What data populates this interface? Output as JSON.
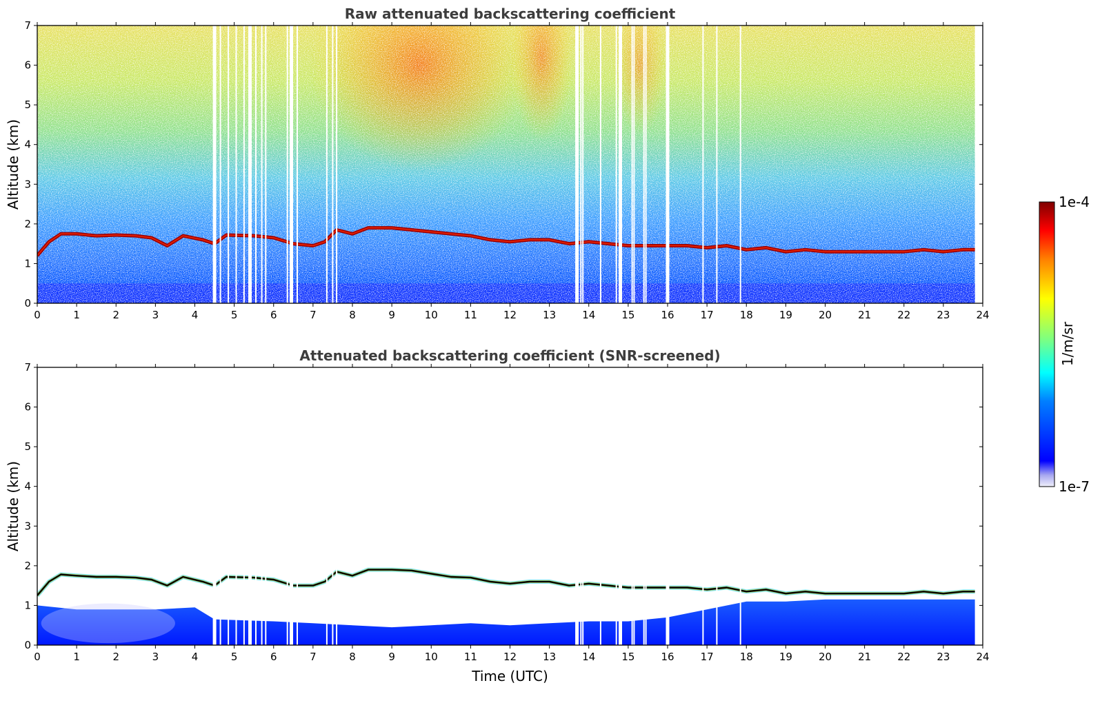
{
  "colors": {
    "jet": [
      "#00007f",
      "#0000ff",
      "#007fff",
      "#00ffff",
      "#7fff7f",
      "#ffff00",
      "#ff7f00",
      "#ff0000",
      "#7f0000"
    ],
    "axis": "#000000",
    "title_text": "#3d3d3d"
  },
  "colorbar": {
    "max_label": "1e-4",
    "min_label": "1e-7",
    "unit_label": "1/m/sr",
    "scale": "log"
  },
  "chart_data": [
    {
      "type": "heatmap",
      "title": "Raw attenuated backscattering coefficient",
      "xlabel": "",
      "ylabel": "Altitude (km)",
      "xlim": [
        0,
        24
      ],
      "ylim": [
        0,
        7
      ],
      "xticks": [
        "0",
        "1",
        "2",
        "3",
        "4",
        "5",
        "6",
        "7",
        "8",
        "9",
        "10",
        "11",
        "12",
        "13",
        "14",
        "15",
        "16",
        "17",
        "18",
        "19",
        "20",
        "21",
        "22",
        "23",
        "24"
      ],
      "yticks": [
        "0",
        "1",
        "2",
        "3",
        "4",
        "5",
        "6",
        "7"
      ],
      "data_end_time": 23.8,
      "cloud_layer_altitude_km": [
        [
          0.0,
          1.2
        ],
        [
          0.3,
          1.55
        ],
        [
          0.6,
          1.75
        ],
        [
          1.0,
          1.75
        ],
        [
          1.5,
          1.7
        ],
        [
          2.0,
          1.72
        ],
        [
          2.5,
          1.7
        ],
        [
          2.9,
          1.65
        ],
        [
          3.3,
          1.45
        ],
        [
          3.7,
          1.7
        ],
        [
          4.2,
          1.6
        ],
        [
          4.5,
          1.5
        ],
        [
          4.8,
          1.72
        ],
        [
          5.5,
          1.7
        ],
        [
          6.0,
          1.65
        ],
        [
          6.5,
          1.5
        ],
        [
          7.0,
          1.45
        ],
        [
          7.3,
          1.55
        ],
        [
          7.6,
          1.85
        ],
        [
          8.0,
          1.75
        ],
        [
          8.4,
          1.9
        ],
        [
          9.0,
          1.9
        ],
        [
          9.5,
          1.85
        ],
        [
          10.0,
          1.8
        ],
        [
          10.5,
          1.75
        ],
        [
          11.0,
          1.7
        ],
        [
          11.5,
          1.6
        ],
        [
          12.0,
          1.55
        ],
        [
          12.5,
          1.6
        ],
        [
          13.0,
          1.6
        ],
        [
          13.5,
          1.5
        ],
        [
          14.0,
          1.55
        ],
        [
          14.5,
          1.5
        ],
        [
          15.0,
          1.45
        ],
        [
          15.5,
          1.45
        ],
        [
          16.0,
          1.45
        ],
        [
          16.5,
          1.45
        ],
        [
          17.0,
          1.4
        ],
        [
          17.5,
          1.45
        ],
        [
          18.0,
          1.35
        ],
        [
          18.5,
          1.4
        ],
        [
          19.0,
          1.3
        ],
        [
          19.5,
          1.35
        ],
        [
          20.0,
          1.3
        ],
        [
          20.5,
          1.3
        ],
        [
          21.0,
          1.3
        ],
        [
          21.5,
          1.3
        ],
        [
          22.0,
          1.3
        ],
        [
          22.5,
          1.35
        ],
        [
          23.0,
          1.3
        ],
        [
          23.5,
          1.35
        ],
        [
          23.8,
          1.35
        ]
      ],
      "missing_data_times": [
        4.5,
        4.65,
        4.85,
        5.05,
        5.25,
        5.4,
        5.55,
        5.7,
        5.8,
        6.35,
        6.45,
        6.6,
        7.35,
        7.5,
        7.6,
        13.7,
        13.8,
        13.85,
        14.3,
        14.7,
        14.8,
        15.1,
        15.15,
        15.4,
        15.45,
        16.0,
        16.9,
        17.25,
        17.85
      ]
    },
    {
      "type": "heatmap",
      "title": "Attenuated backscattering coefficient (SNR-screened)",
      "xlabel": "Time (UTC)",
      "ylabel": "Altitude (km)",
      "xlim": [
        0,
        24
      ],
      "ylim": [
        0,
        7
      ],
      "xticks": [
        "0",
        "1",
        "2",
        "3",
        "4",
        "5",
        "6",
        "7",
        "8",
        "9",
        "10",
        "11",
        "12",
        "13",
        "14",
        "15",
        "16",
        "17",
        "18",
        "19",
        "20",
        "21",
        "22",
        "23",
        "24"
      ],
      "yticks": [
        "0",
        "1",
        "2",
        "3",
        "4",
        "5",
        "6",
        "7"
      ],
      "data_end_time": 23.8,
      "cloud_layer_altitude_km": [
        [
          0.0,
          1.25
        ],
        [
          0.3,
          1.6
        ],
        [
          0.6,
          1.78
        ],
        [
          1.0,
          1.75
        ],
        [
          1.5,
          1.72
        ],
        [
          2.0,
          1.72
        ],
        [
          2.5,
          1.7
        ],
        [
          2.9,
          1.65
        ],
        [
          3.3,
          1.5
        ],
        [
          3.7,
          1.72
        ],
        [
          4.2,
          1.6
        ],
        [
          4.5,
          1.5
        ],
        [
          4.8,
          1.72
        ],
        [
          5.5,
          1.7
        ],
        [
          6.0,
          1.65
        ],
        [
          6.5,
          1.5
        ],
        [
          7.0,
          1.5
        ],
        [
          7.3,
          1.6
        ],
        [
          7.6,
          1.85
        ],
        [
          8.0,
          1.75
        ],
        [
          8.4,
          1.9
        ],
        [
          9.0,
          1.9
        ],
        [
          9.5,
          1.88
        ],
        [
          10.0,
          1.8
        ],
        [
          10.5,
          1.72
        ],
        [
          11.0,
          1.7
        ],
        [
          11.5,
          1.6
        ],
        [
          12.0,
          1.55
        ],
        [
          12.5,
          1.6
        ],
        [
          13.0,
          1.6
        ],
        [
          13.5,
          1.5
        ],
        [
          14.0,
          1.55
        ],
        [
          14.5,
          1.5
        ],
        [
          15.0,
          1.45
        ],
        [
          15.5,
          1.45
        ],
        [
          16.0,
          1.45
        ],
        [
          16.5,
          1.45
        ],
        [
          17.0,
          1.4
        ],
        [
          17.5,
          1.45
        ],
        [
          18.0,
          1.35
        ],
        [
          18.5,
          1.4
        ],
        [
          19.0,
          1.3
        ],
        [
          19.5,
          1.35
        ],
        [
          20.0,
          1.3
        ],
        [
          20.5,
          1.3
        ],
        [
          21.0,
          1.3
        ],
        [
          21.5,
          1.3
        ],
        [
          22.0,
          1.3
        ],
        [
          22.5,
          1.35
        ],
        [
          23.0,
          1.3
        ],
        [
          23.5,
          1.35
        ],
        [
          23.8,
          1.35
        ]
      ],
      "boundary_layer_top_km": [
        [
          0.0,
          1.0
        ],
        [
          1.0,
          0.9
        ],
        [
          2.0,
          0.9
        ],
        [
          3.0,
          0.9
        ],
        [
          4.0,
          0.95
        ],
        [
          4.5,
          0.65
        ],
        [
          6.0,
          0.6
        ],
        [
          7.0,
          0.55
        ],
        [
          8.0,
          0.5
        ],
        [
          9.0,
          0.45
        ],
        [
          10.0,
          0.5
        ],
        [
          11.0,
          0.55
        ],
        [
          12.0,
          0.5
        ],
        [
          13.0,
          0.55
        ],
        [
          14.0,
          0.6
        ],
        [
          15.0,
          0.6
        ],
        [
          16.0,
          0.7
        ],
        [
          17.0,
          0.9
        ],
        [
          18.0,
          1.1
        ],
        [
          19.0,
          1.1
        ],
        [
          20.0,
          1.15
        ],
        [
          21.0,
          1.15
        ],
        [
          22.0,
          1.15
        ],
        [
          23.0,
          1.15
        ],
        [
          23.8,
          1.15
        ]
      ],
      "missing_data_times": [
        4.5,
        4.65,
        4.85,
        5.05,
        5.25,
        5.4,
        5.55,
        5.7,
        5.8,
        6.35,
        6.45,
        6.6,
        7.35,
        7.5,
        7.6,
        13.7,
        13.8,
        13.85,
        14.3,
        14.7,
        14.8,
        15.1,
        15.15,
        15.4,
        15.45,
        16.0,
        16.9,
        17.25,
        17.85
      ]
    }
  ]
}
